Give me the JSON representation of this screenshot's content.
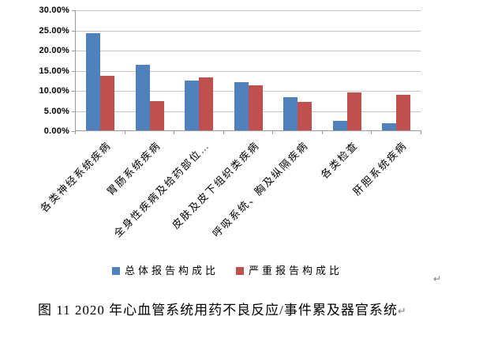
{
  "figure": {
    "caption": "图 11  2020 年心血管系统用药不良反应/事件累及器官系统",
    "paragraph_mark": "↵",
    "stray_paragraph_mark": "↵"
  },
  "chart_data": {
    "type": "bar",
    "title": "",
    "xlabel": "",
    "ylabel": "",
    "categories": [
      "各类神经系统疾病",
      "胃肠系统疾病",
      "全身性疾病及给药部位…",
      "皮肤及皮下组织类疾病",
      "呼吸系统、胸及纵隔疾病",
      "各类检查",
      "肝胆系统疾病"
    ],
    "series": [
      {
        "name": "总体报告构成比",
        "color": "#4F81BD",
        "values": [
          24.2,
          16.3,
          12.3,
          12.0,
          8.3,
          2.4,
          1.7
        ]
      },
      {
        "name": "严重报告构成比",
        "color": "#C0504D",
        "values": [
          13.5,
          7.2,
          13.1,
          11.1,
          7.0,
          9.4,
          8.9
        ]
      }
    ],
    "y_axis": {
      "min": 0,
      "max": 30,
      "step": 5,
      "format": "percent",
      "tick_labels": [
        "0.00%",
        "5.00%",
        "10.00%",
        "15.00%",
        "20.00%",
        "25.00%",
        "30.00%"
      ]
    },
    "grid": true,
    "legend_position": "bottom",
    "colors": {
      "gridline": "#C6C6C6",
      "axis": "#9A9A9A",
      "text": "#000000",
      "mark": "#808080"
    }
  }
}
